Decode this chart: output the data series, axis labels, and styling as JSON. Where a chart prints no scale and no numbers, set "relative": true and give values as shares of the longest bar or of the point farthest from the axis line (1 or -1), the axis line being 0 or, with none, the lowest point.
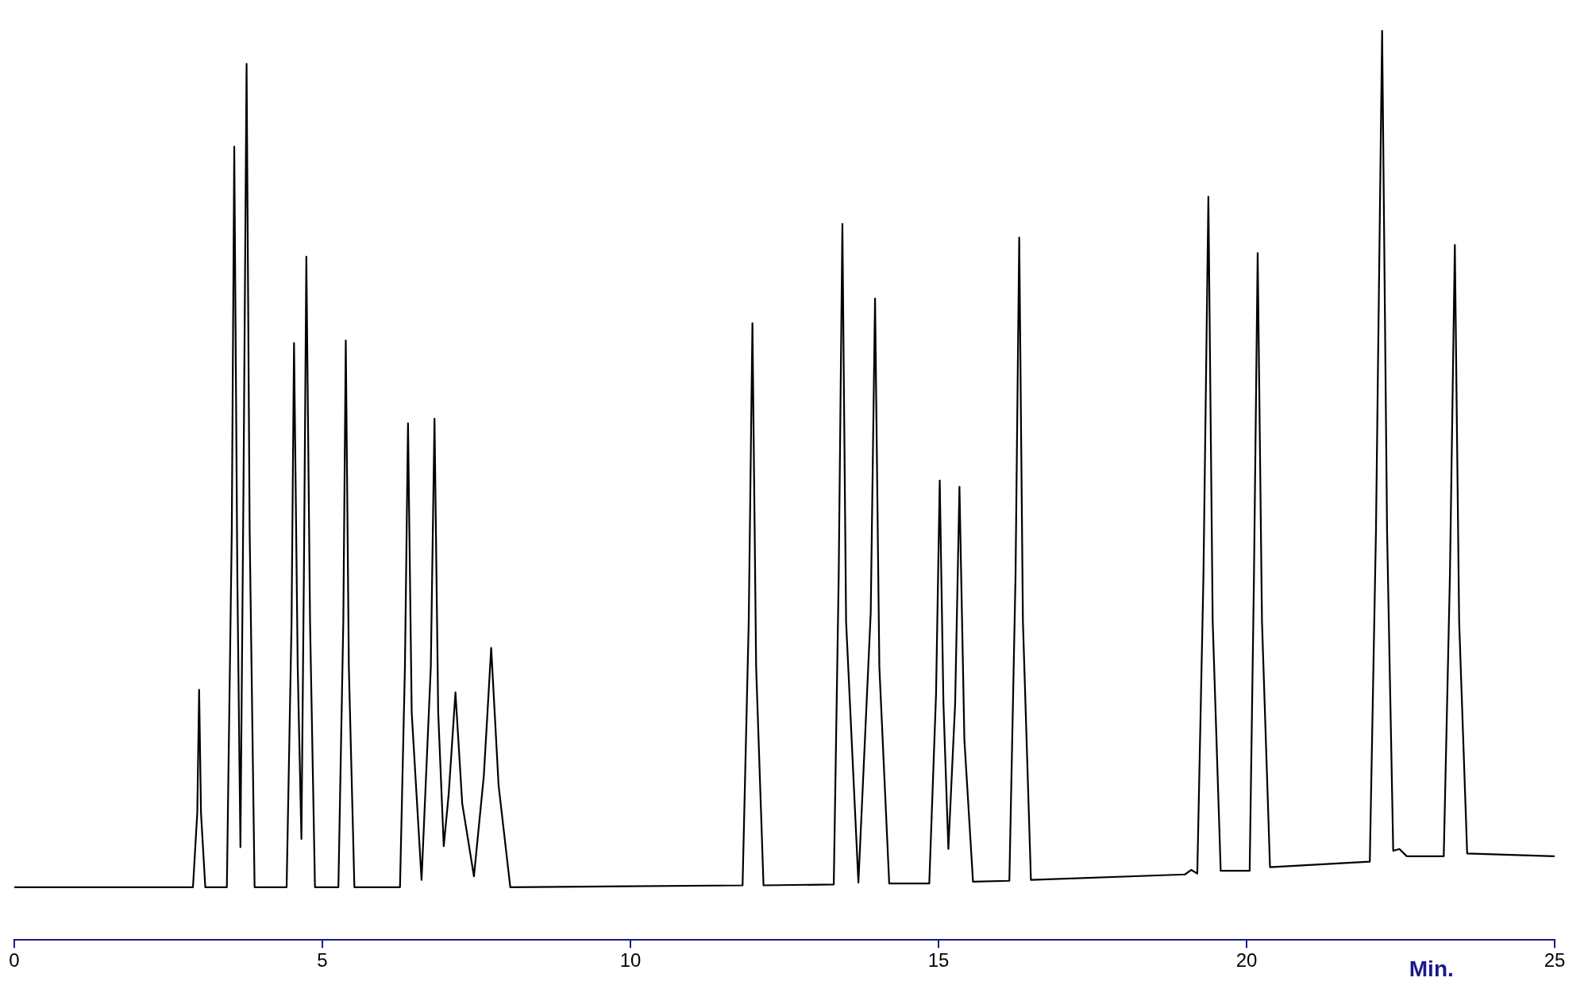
{
  "chart_data": {
    "type": "line",
    "relative": true,
    "xlabel": "Min.",
    "xlim": [
      0,
      25
    ],
    "xticks": [
      0,
      5,
      10,
      15,
      20,
      25
    ],
    "tick_labels": "x",
    "grid": false,
    "legend": false,
    "marker": "none",
    "series": [
      {
        "color": "#000000",
        "x": [
          0,
          2.9,
          2.97,
          3.0,
          3.03,
          3.1,
          3.45,
          3.53,
          3.57,
          3.62,
          3.67,
          3.72,
          3.77,
          3.82,
          3.9,
          4.42,
          4.5,
          4.54,
          4.6,
          4.66,
          4.7,
          4.74,
          4.8,
          4.88,
          5.26,
          5.34,
          5.38,
          5.43,
          5.52,
          6.26,
          6.34,
          6.39,
          6.45,
          6.61,
          6.76,
          6.82,
          6.88,
          6.97,
          7.05,
          7.16,
          7.27,
          7.46,
          7.62,
          7.74,
          7.86,
          8.05,
          11.82,
          11.92,
          11.98,
          12.04,
          12.16,
          13.3,
          13.38,
          13.44,
          13.5,
          13.7,
          13.9,
          13.97,
          14.04,
          14.2,
          14.85,
          14.96,
          15.02,
          15.08,
          15.16,
          15.27,
          15.34,
          15.42,
          15.56,
          16.15,
          16.25,
          16.31,
          16.37,
          16.5,
          19.0,
          19.1,
          19.2,
          19.3,
          19.38,
          19.45,
          19.58,
          20.05,
          20.12,
          20.18,
          20.25,
          20.38,
          22.0,
          22.1,
          22.2,
          22.28,
          22.38,
          22.48,
          22.6,
          23.2,
          23.3,
          23.38,
          23.45,
          23.58,
          25
        ],
        "values": [
          0.058,
          0.058,
          0.14,
          0.275,
          0.14,
          0.058,
          0.058,
          0.45,
          0.872,
          0.4,
          0.102,
          0.5,
          0.963,
          0.45,
          0.058,
          0.058,
          0.35,
          0.656,
          0.3,
          0.111,
          0.4,
          0.751,
          0.35,
          0.058,
          0.058,
          0.35,
          0.659,
          0.3,
          0.058,
          0.058,
          0.3,
          0.568,
          0.25,
          0.066,
          0.3,
          0.573,
          0.25,
          0.103,
          0.16,
          0.272,
          0.15,
          0.07,
          0.18,
          0.321,
          0.17,
          0.058,
          0.06,
          0.35,
          0.678,
          0.3,
          0.06,
          0.061,
          0.4,
          0.787,
          0.35,
          0.063,
          0.36,
          0.705,
          0.3,
          0.062,
          0.062,
          0.27,
          0.505,
          0.26,
          0.1,
          0.26,
          0.498,
          0.22,
          0.064,
          0.065,
          0.4,
          0.772,
          0.35,
          0.066,
          0.072,
          0.077,
          0.073,
          0.4,
          0.817,
          0.35,
          0.076,
          0.076,
          0.4,
          0.755,
          0.35,
          0.08,
          0.086,
          0.45,
          1.0,
          0.45,
          0.098,
          0.1,
          0.092,
          0.092,
          0.4,
          0.764,
          0.35,
          0.095,
          0.092
        ]
      }
    ]
  }
}
